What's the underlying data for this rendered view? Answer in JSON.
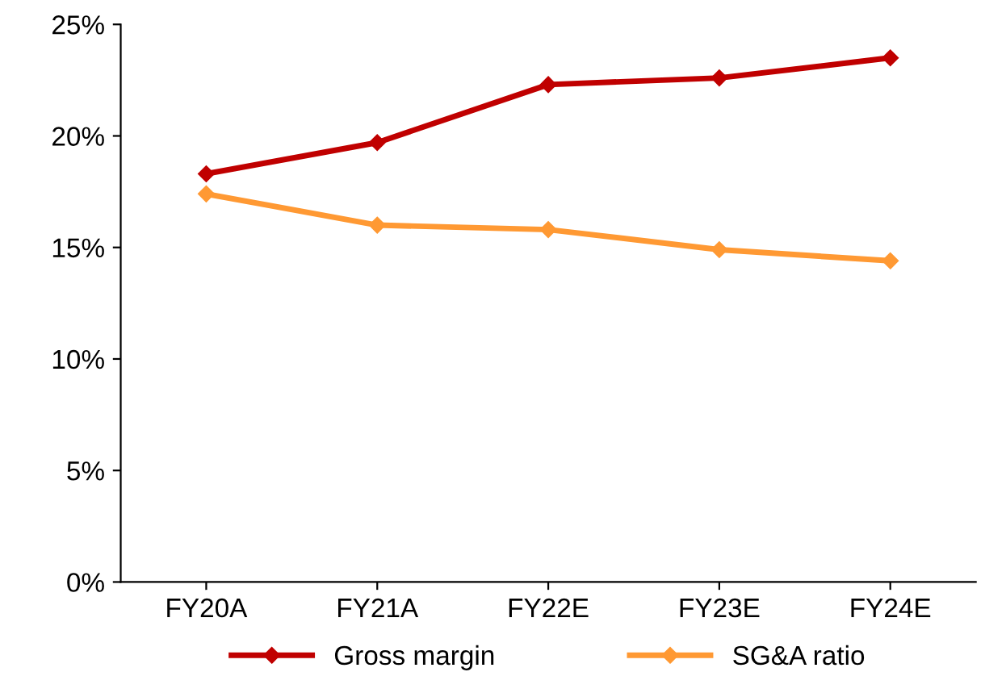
{
  "chart_data": {
    "type": "line",
    "categories": [
      "FY20A",
      "FY21A",
      "FY22E",
      "FY23E",
      "FY24E"
    ],
    "series": [
      {
        "name": "Gross margin",
        "color": "#c00000",
        "values": [
          18.3,
          19.7,
          22.3,
          22.6,
          23.5
        ]
      },
      {
        "name": "SG&A ratio",
        "color": "#ff9933",
        "values": [
          17.4,
          16.0,
          15.8,
          14.9,
          14.4
        ]
      }
    ],
    "ylim": [
      0,
      25
    ],
    "yticks": [
      {
        "value": 0,
        "label": "0%"
      },
      {
        "value": 5,
        "label": "5%"
      },
      {
        "value": 10,
        "label": "10%"
      },
      {
        "value": 15,
        "label": "15%"
      },
      {
        "value": 20,
        "label": "20%"
      },
      {
        "value": 25,
        "label": "25%"
      }
    ],
    "grid": false,
    "legend": "bottom",
    "marker": "diamond",
    "line_style": "solid"
  }
}
